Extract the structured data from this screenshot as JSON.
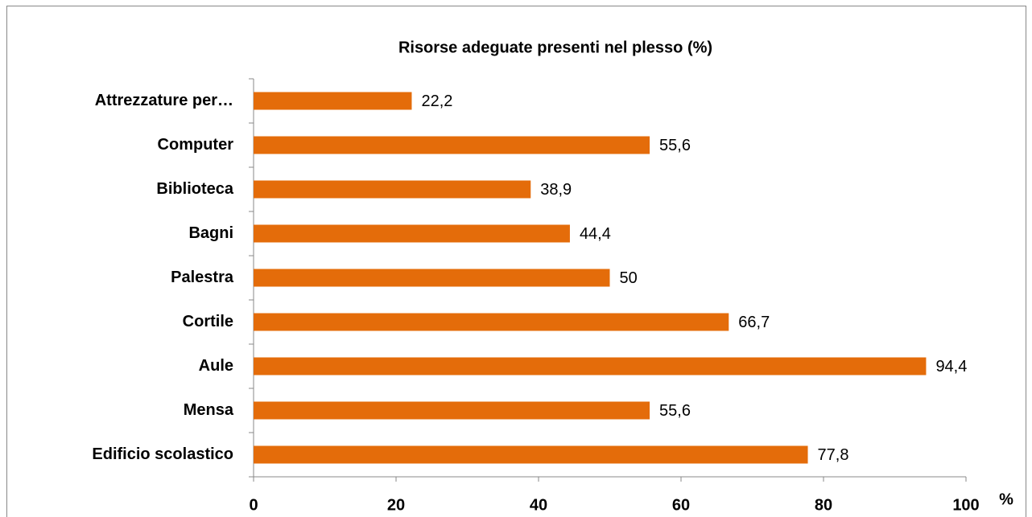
{
  "chart_data": {
    "type": "barh",
    "title": "Risorse adeguate presenti nel plesso  (%)",
    "categories": [
      "Attrezzature per…",
      "Computer",
      "Biblioteca",
      "Bagni",
      "Palestra",
      "Cortile",
      "Aule",
      "Mensa",
      "Edificio scolastico"
    ],
    "values": [
      22.2,
      55.6,
      38.9,
      44.4,
      50,
      66.7,
      94.4,
      55.6,
      77.8
    ],
    "value_labels": [
      "22,2",
      "55,6",
      "38,9",
      "44,4",
      "50",
      "66,7",
      "94,4",
      "55,6",
      "77,8"
    ],
    "color": "#e46c0a",
    "xlim": [
      0,
      100
    ],
    "xticks": [
      0,
      20,
      40,
      60,
      80,
      100
    ],
    "x_label": "%",
    "grid": false
  }
}
